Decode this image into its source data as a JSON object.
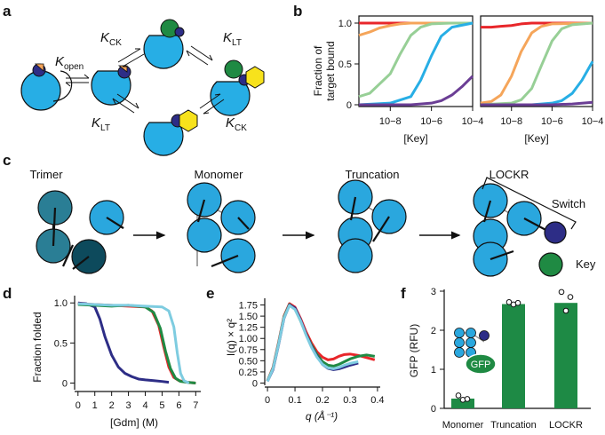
{
  "panels": {
    "a": {
      "label": "a",
      "k_open": "K",
      "k_open_sub": "open",
      "k_ck": "K",
      "k_ck_sub": "CK",
      "k_lt": "K",
      "k_lt_sub": "LT"
    },
    "b": {
      "label": "b",
      "ylabel_line1": "Fraction of",
      "ylabel_line2": "target bound",
      "xlabel": "[Key]",
      "yticks": [
        "0",
        "0.5",
        "1.0"
      ],
      "xticks": [
        "10−8",
        "10−6",
        "10−4"
      ]
    },
    "c": {
      "label": "c",
      "stages": [
        "Trimer",
        "Monomer",
        "Truncation",
        "LOCKR"
      ],
      "switch_label": "Switch",
      "key_label": "Key"
    },
    "d": {
      "label": "d",
      "ylabel": "Fraction folded",
      "xlabel": "[Gdm] (M)",
      "yticks": [
        "0",
        "0.5",
        "1.0"
      ],
      "xticks": [
        "0",
        "1",
        "2",
        "3",
        "4",
        "5",
        "6",
        "7"
      ]
    },
    "e": {
      "label": "e",
      "ylabel": "I(q) × q²",
      "xlabel": "q (Å⁻¹)",
      "yticks": [
        "0",
        "0.25",
        "0.50",
        "0.75",
        "1.00",
        "1.25",
        "1.50",
        "1.75"
      ],
      "xticks": [
        "0",
        "0.1",
        "0.2",
        "0.3",
        "0.4"
      ]
    },
    "f": {
      "label": "f",
      "ylabel": "GFP (RFU)",
      "gfp_label": "GFP",
      "yticks": [
        "0",
        "1",
        "2",
        "3"
      ]
    }
  },
  "colors": {
    "red": "#e8262a",
    "orange": "#f5a55a",
    "green": "#97cf96",
    "blue": "#27aee5",
    "purple": "#6b3e95",
    "navy": "#2d2d86",
    "darkgreen": "#1f8a43",
    "lightblue": "#7ecce0",
    "barGreen": "#1e8a45",
    "teal_dark": "#0d4a5c",
    "teal": "#2a7e95",
    "cyan": "#2aa7de",
    "yellow": "#f7e21c"
  },
  "chart_data": [
    {
      "type": "line",
      "panel": "b-left",
      "xlabel": "[Key]",
      "ylabel": "Fraction of target bound",
      "xscale": "log",
      "xlim": [
        3e-10,
        0.0001
      ],
      "ylim": [
        0,
        1
      ],
      "series": [
        {
          "color": "red",
          "x": [
            3e-10,
            1e-09,
            1e-08,
            1e-07,
            1e-06,
            1e-05,
            0.0001
          ],
          "y": [
            1.0,
            1.0,
            1.0,
            1.0,
            1.0,
            1.0,
            1.0
          ]
        },
        {
          "color": "orange",
          "x": [
            3e-10,
            1e-09,
            3e-09,
            1e-08,
            3e-08,
            1e-07,
            1e-06,
            0.0001
          ],
          "y": [
            0.85,
            0.89,
            0.94,
            0.97,
            0.99,
            1.0,
            1.0,
            1.0
          ]
        },
        {
          "color": "green",
          "x": [
            3e-10,
            1e-09,
            1e-08,
            3e-08,
            1e-07,
            3e-07,
            1e-06,
            1e-05,
            0.0001
          ],
          "y": [
            0.1,
            0.14,
            0.38,
            0.62,
            0.85,
            0.95,
            0.99,
            1.0,
            1.0
          ]
        },
        {
          "color": "blue",
          "x": [
            3e-10,
            1e-08,
            1e-07,
            3e-07,
            1e-06,
            3e-06,
            1e-05,
            0.0001
          ],
          "y": [
            0.0,
            0.02,
            0.1,
            0.3,
            0.6,
            0.84,
            0.95,
            1.0
          ]
        },
        {
          "color": "purple",
          "x": [
            3e-10,
            1e-07,
            1e-06,
            3e-06,
            1e-05,
            3e-05,
            0.0001
          ],
          "y": [
            0.0,
            0.0,
            0.02,
            0.05,
            0.12,
            0.22,
            0.35
          ]
        }
      ]
    },
    {
      "type": "line",
      "panel": "b-right",
      "xlabel": "[Key]",
      "xscale": "log",
      "xlim": [
        3e-10,
        0.0001
      ],
      "ylim": [
        0,
        1
      ],
      "series": [
        {
          "color": "red",
          "x": [
            3e-10,
            1e-09,
            3e-09,
            1e-08,
            3e-08,
            1e-07,
            1e-06,
            0.0001
          ],
          "y": [
            0.95,
            0.95,
            0.96,
            0.97,
            0.99,
            1.0,
            1.0,
            1.0
          ]
        },
        {
          "color": "orange",
          "x": [
            3e-10,
            1e-09,
            3e-09,
            1e-08,
            3e-08,
            1e-07,
            3e-07,
            1e-06,
            0.0001
          ],
          "y": [
            0.02,
            0.04,
            0.12,
            0.35,
            0.65,
            0.88,
            0.96,
            0.99,
            1.0
          ]
        },
        {
          "color": "green",
          "x": [
            3e-10,
            1e-08,
            3e-08,
            1e-07,
            3e-07,
            1e-06,
            3e-06,
            1e-05,
            0.0001
          ],
          "y": [
            0.0,
            0.02,
            0.06,
            0.2,
            0.48,
            0.78,
            0.93,
            0.98,
            1.0
          ]
        },
        {
          "color": "blue",
          "x": [
            3e-10,
            1e-07,
            1e-06,
            3e-06,
            1e-05,
            3e-05,
            0.0001
          ],
          "y": [
            0.0,
            0.0,
            0.02,
            0.05,
            0.14,
            0.3,
            0.53
          ]
        },
        {
          "color": "purple",
          "x": [
            3e-10,
            1e-06,
            1e-05,
            0.0001
          ],
          "y": [
            0.0,
            0.0,
            0.01,
            0.03
          ]
        }
      ]
    },
    {
      "type": "line",
      "panel": "d",
      "xlabel": "[Gdm] (M)",
      "ylabel": "Fraction folded",
      "xlim": [
        -0.2,
        7.3
      ],
      "ylim": [
        -0.05,
        1.08
      ],
      "series": [
        {
          "color": "navy",
          "x": [
            0,
            0.5,
            1.0,
            1.3,
            1.6,
            2.0,
            2.4,
            2.8,
            3.2,
            3.6,
            4.0,
            4.5,
            5.0,
            5.4
          ],
          "y": [
            1.0,
            0.99,
            0.95,
            0.8,
            0.58,
            0.35,
            0.2,
            0.12,
            0.08,
            0.05,
            0.04,
            0.03,
            0.02,
            0.01
          ]
        },
        {
          "color": "red",
          "x": [
            0,
            1,
            2,
            3,
            4,
            4.4,
            4.8,
            5.1,
            5.4,
            5.7,
            6.0,
            6.5,
            7.0
          ],
          "y": [
            0.99,
            0.98,
            0.97,
            0.96,
            0.95,
            0.9,
            0.72,
            0.45,
            0.2,
            0.07,
            0.03,
            0.01,
            0.0
          ]
        },
        {
          "color": "darkgreen",
          "x": [
            0,
            1,
            2,
            3,
            4,
            4.5,
            4.9,
            5.2,
            5.5,
            5.8,
            6.1,
            6.5,
            7.0
          ],
          "y": [
            0.98,
            0.97,
            0.96,
            0.97,
            0.95,
            0.88,
            0.68,
            0.4,
            0.18,
            0.06,
            0.02,
            0.01,
            0.0
          ]
        },
        {
          "color": "lightblue",
          "x": [
            0,
            1,
            2,
            3,
            4,
            5.0,
            5.4,
            5.7,
            5.9,
            6.1,
            6.3,
            6.6
          ],
          "y": [
            0.99,
            0.98,
            0.97,
            0.97,
            0.96,
            0.95,
            0.9,
            0.7,
            0.38,
            0.12,
            0.03,
            0.0
          ]
        }
      ]
    },
    {
      "type": "line",
      "panel": "e",
      "xlabel": "q (Å⁻¹)",
      "ylabel": "I(q) × q²",
      "xlim": [
        -0.01,
        0.41
      ],
      "ylim": [
        -0.05,
        1.9
      ],
      "series": [
        {
          "color": "red",
          "x": [
            0.0,
            0.02,
            0.04,
            0.06,
            0.08,
            0.1,
            0.12,
            0.14,
            0.16,
            0.18,
            0.2,
            0.22,
            0.24,
            0.26,
            0.28,
            0.3,
            0.33,
            0.36,
            0.39
          ],
          "y": [
            0.05,
            0.35,
            0.9,
            1.5,
            1.78,
            1.7,
            1.45,
            1.15,
            0.9,
            0.7,
            0.58,
            0.52,
            0.54,
            0.6,
            0.64,
            0.65,
            0.62,
            0.57,
            0.52
          ]
        },
        {
          "color": "darkgreen",
          "x": [
            0.0,
            0.02,
            0.04,
            0.06,
            0.08,
            0.1,
            0.12,
            0.14,
            0.16,
            0.18,
            0.2,
            0.22,
            0.24,
            0.26,
            0.28,
            0.3,
            0.33,
            0.36,
            0.39
          ],
          "y": [
            0.05,
            0.33,
            0.88,
            1.48,
            1.76,
            1.66,
            1.4,
            1.1,
            0.85,
            0.64,
            0.48,
            0.4,
            0.38,
            0.42,
            0.48,
            0.54,
            0.6,
            0.63,
            0.6
          ]
        },
        {
          "color": "navy",
          "x": [
            0.0,
            0.02,
            0.04,
            0.06,
            0.08,
            0.1,
            0.12,
            0.14,
            0.16,
            0.18,
            0.2,
            0.22,
            0.24,
            0.26,
            0.28,
            0.3,
            0.33
          ],
          "y": [
            0.04,
            0.3,
            0.85,
            1.45,
            1.75,
            1.68,
            1.42,
            1.1,
            0.82,
            0.6,
            0.42,
            0.33,
            0.3,
            0.32,
            0.36,
            0.4,
            0.45
          ]
        },
        {
          "color": "lightblue",
          "x": [
            0.0,
            0.02,
            0.04,
            0.06,
            0.08,
            0.1,
            0.12,
            0.14,
            0.16,
            0.18,
            0.2,
            0.22,
            0.24,
            0.26,
            0.28,
            0.3,
            0.33
          ],
          "y": [
            0.04,
            0.32,
            0.86,
            1.46,
            1.74,
            1.65,
            1.4,
            1.08,
            0.8,
            0.58,
            0.42,
            0.34,
            0.32,
            0.35,
            0.4,
            0.44,
            0.48
          ]
        }
      ]
    },
    {
      "type": "bar",
      "panel": "f",
      "ylabel": "GFP (RFU)",
      "categories": [
        "Monomer",
        "Truncation",
        "LOCKR"
      ],
      "values": [
        0.25,
        2.67,
        2.7
      ],
      "ylim": [
        0,
        3
      ],
      "points": [
        [
          0.33,
          0.22,
          0.24
        ],
        [
          2.72,
          2.66,
          2.7
        ],
        [
          2.98,
          2.5,
          2.85
        ]
      ]
    }
  ]
}
